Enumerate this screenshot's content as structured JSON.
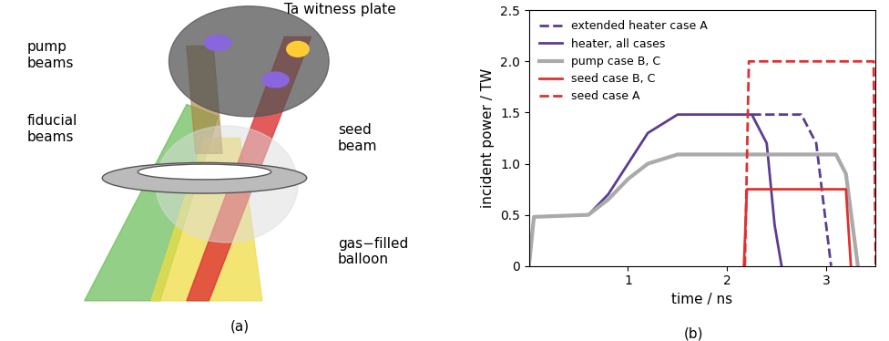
{
  "chart_data": {
    "type": "line",
    "x_label": "time / ns",
    "y_label": "incident power / TW",
    "annotations": [
      "(b)"
    ],
    "xlim": [
      0,
      3.5
    ],
    "xticks": [
      1,
      2,
      3
    ],
    "ylim": [
      0,
      2.5
    ],
    "yticks": [
      0,
      0.5,
      {
        "value": 1,
        "label": "1.0"
      },
      1.5,
      {
        "value": 2,
        "label": "2.0"
      },
      2.5
    ],
    "legend": "upper left",
    "series": [
      {
        "name": "extended heater case A",
        "color": "#5c3c92",
        "line_style": "dashed",
        "x": [
          2.25,
          2.75,
          2.9,
          3.0,
          3.05
        ],
        "values": [
          1.48,
          1.48,
          1.2,
          0.4,
          0
        ]
      },
      {
        "name": "heater, all cases",
        "color": "#5c3c92",
        "line_style": "solid",
        "x": [
          0,
          0.05,
          0.6,
          0.8,
          1.0,
          1.2,
          1.5,
          2.25,
          2.4,
          2.48,
          2.55
        ],
        "values": [
          0,
          0.48,
          0.5,
          0.7,
          1.0,
          1.3,
          1.48,
          1.48,
          1.2,
          0.4,
          0
        ]
      },
      {
        "name": "pump case B, C",
        "color": "#aaaaaa",
        "line_style": "solid",
        "x": [
          0,
          0.05,
          0.6,
          0.8,
          1.0,
          1.2,
          1.5,
          3.1,
          3.2,
          3.28,
          3.32
        ],
        "values": [
          0,
          0.48,
          0.5,
          0.65,
          0.85,
          1.0,
          1.09,
          1.09,
          0.9,
          0.3,
          0
        ]
      },
      {
        "name": "seed case B, C",
        "color": "#e03030",
        "line_style": "solid",
        "x": [
          2.17,
          2.2,
          3.2,
          3.25
        ],
        "values": [
          0,
          0.75,
          0.75,
          0
        ]
      },
      {
        "name": "seed case A",
        "color": "#e03030",
        "line_style": "dashed",
        "x": [
          2.18,
          2.22,
          3.48,
          3.5
        ],
        "values": [
          0,
          2.0,
          2.0,
          0
        ]
      }
    ]
  },
  "diagram": {
    "labels": [
      "Ta witness plate",
      "pump\nbeams",
      "fiducial\nbeams",
      "seed\nbeam",
      "gas−filled\nballoon"
    ],
    "caption": "(a)"
  }
}
